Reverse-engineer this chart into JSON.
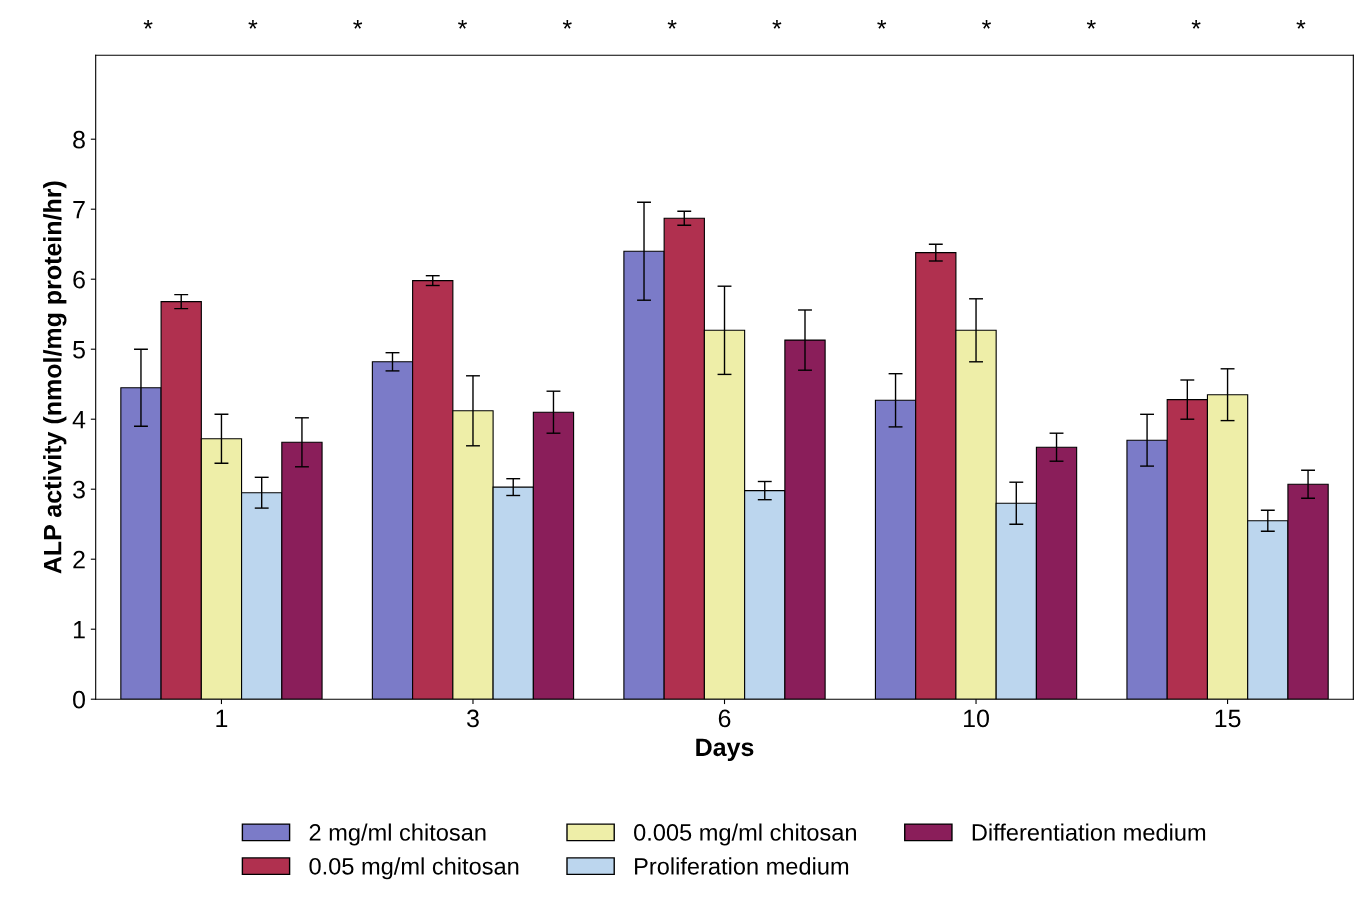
{
  "chart_data": {
    "type": "bar",
    "xlabel": "Days",
    "ylabel": "ALP activity (nmol/mg protein/hr)",
    "categories": [
      "1",
      "3",
      "6",
      "10",
      "15"
    ],
    "series": [
      {
        "name": "2 mg/ml chitosan",
        "color": "#7b7bc8",
        "values": [
          4.45,
          4.82,
          6.4,
          4.27,
          3.7
        ],
        "errors": [
          0.55,
          0.13,
          0.7,
          0.38,
          0.37
        ]
      },
      {
        "name": "0.05 mg/ml chitosan",
        "color": "#b0304f",
        "values": [
          5.68,
          5.98,
          6.87,
          6.38,
          4.28
        ],
        "errors": [
          0.1,
          0.07,
          0.1,
          0.12,
          0.28
        ]
      },
      {
        "name": "0.005 mg/ml chitosan",
        "color": "#eeeea8",
        "values": [
          3.72,
          4.12,
          5.27,
          5.27,
          4.35
        ],
        "errors": [
          0.35,
          0.5,
          0.63,
          0.45,
          0.37
        ]
      },
      {
        "name": "Proliferation medium",
        "color": "#bcd6ee",
        "values": [
          2.95,
          3.03,
          2.98,
          2.8,
          2.55
        ],
        "errors": [
          0.22,
          0.12,
          0.13,
          0.3,
          0.15
        ]
      },
      {
        "name": "Differentiation medium",
        "color": "#8a1e5a",
        "values": [
          3.67,
          4.1,
          5.13,
          3.6,
          3.07
        ],
        "errors": [
          0.35,
          0.3,
          0.43,
          0.2,
          0.2
        ]
      }
    ],
    "ylim": [
      0,
      9.2
    ],
    "yticks": [
      0,
      1,
      2,
      3,
      4,
      5,
      6,
      7,
      8
    ],
    "grid": false,
    "legend": "bottom",
    "annotations": [
      "*",
      "*",
      "*",
      "*",
      "*",
      "*",
      "*",
      "*",
      "*",
      "*",
      "*",
      "*"
    ]
  }
}
